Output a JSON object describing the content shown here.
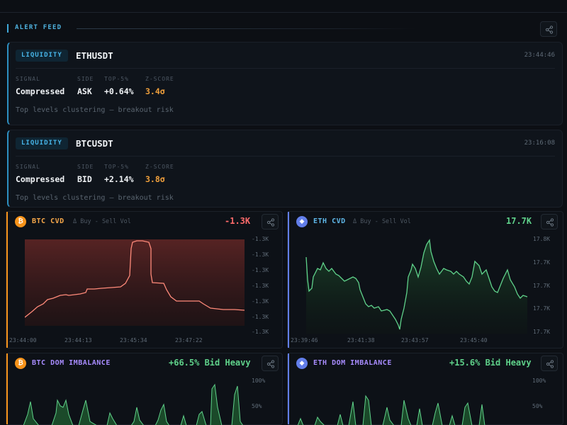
{
  "feed": {
    "title": "ALERT FEED",
    "share_icon": "share-icon"
  },
  "alerts": [
    {
      "badge": "LIQUIDITY",
      "symbol": "ETHUSDT",
      "time": "23:44:46",
      "labels": [
        "SIGNAL",
        "SIDE",
        "TOP-5%",
        "Z-SCORE"
      ],
      "signal": "Compressed",
      "side": "ASK",
      "top5": "+0.64%",
      "zscore": "3.4σ",
      "note": "Top levels clustering — breakout risk"
    },
    {
      "badge": "LIQUIDITY",
      "symbol": "BTCUSDT",
      "time": "23:16:08",
      "labels": [
        "SIGNAL",
        "SIDE",
        "TOP-5%",
        "Z-SCORE"
      ],
      "signal": "Compressed",
      "side": "BID",
      "top5": "+2.14%",
      "zscore": "3.8σ",
      "note": "Top levels clustering — breakout risk"
    }
  ],
  "panels": {
    "btc_cvd": {
      "coin": "₿",
      "title": "BTC CVD",
      "subtitle": "Δ Buy - Sell Vol",
      "value": "-1.3K",
      "accent": "#f7931a",
      "title_color": "#f7a84a",
      "y_ticks": [
        "-1.3K",
        "-1.3K",
        "-1.3K",
        "-1.3K",
        "-1.3K",
        "-1.3K",
        "-1.3K"
      ],
      "x_ticks": [
        "23:44:00",
        "23:44:13",
        "23:45:34",
        "23:47:22"
      ]
    },
    "eth_cvd": {
      "coin": "◆",
      "title": "ETH CVD",
      "subtitle": "Δ Buy - Sell Vol",
      "value": "17.7K",
      "accent": "#627eea",
      "title_color": "#5fb7e8",
      "y_ticks": [
        "17.8K",
        "17.7K",
        "17.7K",
        "17.7K",
        "17.7K"
      ],
      "x_ticks": [
        "23:39:46",
        "23:41:38",
        "23:43:57",
        "23:45:40"
      ]
    },
    "btc_dom": {
      "coin": "₿",
      "title": "BTC DOM IMBALANCE",
      "value": "+66.5% Bid Heavy",
      "accent": "#f7931a",
      "title_color": "#a88cff",
      "y_ticks": [
        "100%",
        "50%"
      ]
    },
    "eth_dom": {
      "coin": "◆",
      "title": "ETH DOM IMBALANCE",
      "value": "+15.6% Bid Heavy",
      "accent": "#627eea",
      "title_color": "#a88cff",
      "y_ticks": [
        "100%",
        "50%"
      ]
    }
  },
  "colors": {
    "accent_blue": "#47b5e8",
    "negative": "#ff6b6b",
    "positive": "#5fd18a",
    "zscore": "#f0a03c"
  }
}
